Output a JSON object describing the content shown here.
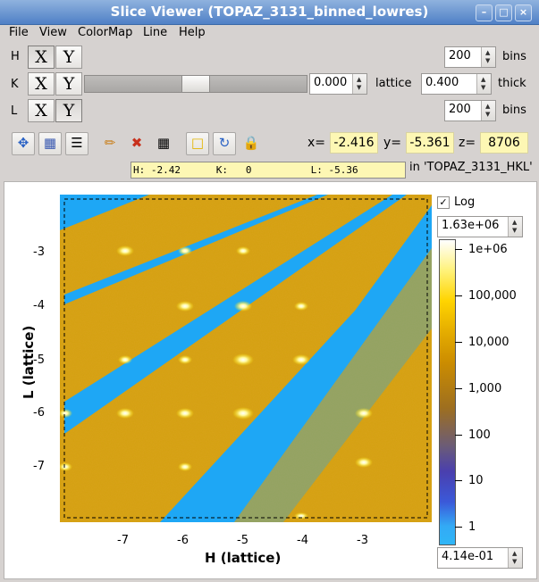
{
  "window": {
    "title": "Slice Viewer (TOPAZ_3131_binned_lowres)"
  },
  "menu": [
    "File",
    "View",
    "ColorMap",
    "Line",
    "Help"
  ],
  "dims": [
    {
      "label": "H",
      "x": "X",
      "y": "Y",
      "bins": "200",
      "bins_label": "bins"
    },
    {
      "label": "K",
      "x": "X",
      "y": "Y",
      "value": "0.000",
      "lattice_label": "lattice",
      "thick": "0.400",
      "thick_label": "thick"
    },
    {
      "label": "L",
      "x": "X",
      "y": "Y",
      "bins": "200",
      "bins_label": "bins"
    }
  ],
  "coords": {
    "x_label": "x=",
    "x": "-2.416",
    "y_label": "y=",
    "y": "-5.361",
    "z_label": "z=",
    "z": "8706"
  },
  "hkl_readout": "H: -2.42      K:   0          L: -5.36",
  "workspace": "in 'TOPAZ_3131_HKL'",
  "plot": {
    "xlabel": "H (lattice)",
    "ylabel": "L (lattice)",
    "xticks": [
      "-7",
      "-6",
      "-5",
      "-4",
      "-3"
    ],
    "yticks": [
      "-3",
      "-4",
      "-5",
      "-6",
      "-7"
    ]
  },
  "colorbar": {
    "log_label": "Log",
    "log_checked": true,
    "max": "1.63e+06",
    "min": "4.14e-01",
    "labels": [
      "1e+06",
      "100,000",
      "10,000",
      "1,000",
      "100",
      "10",
      "1"
    ]
  },
  "colors": {
    "title_bar": "#5b8bcc",
    "readout_bg": "#fdf7b4",
    "streak": "#1ea7f5",
    "background_intensity": "#d9a21b"
  }
}
